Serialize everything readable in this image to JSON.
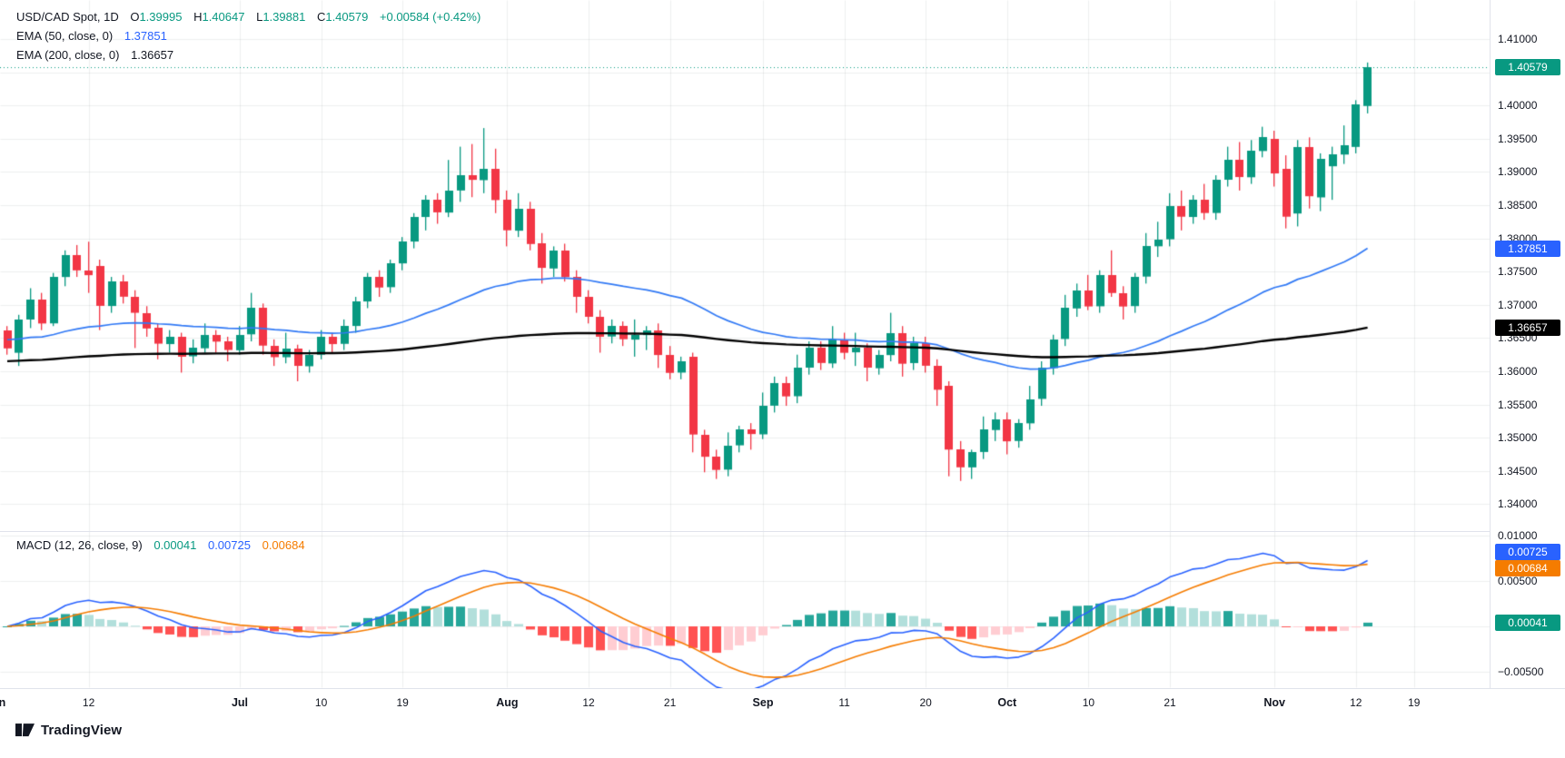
{
  "header": {
    "symbol": "USD/CAD Spot, 1D",
    "ohlc": {
      "o_label": "O",
      "o": "1.39995",
      "h_label": "H",
      "h": "1.40647",
      "l_label": "L",
      "l": "1.39881",
      "c_label": "C",
      "c": "1.40579",
      "change": "+0.00584 (+0.42%)"
    },
    "ema50_label": "EMA (50, close, 0)",
    "ema50_value": "1.37851",
    "ema200_label": "EMA (200, close, 0)",
    "ema200_value": "1.36657"
  },
  "macd_pane": {
    "label": "MACD (12, 26, close, 9)",
    "hist_value": "0.00041",
    "macd_value": "0.00725",
    "signal_value": "0.00684"
  },
  "badges": {
    "last_price": "1.40579",
    "ema50": "1.37851",
    "ema200": "1.36657",
    "macd": "0.00725",
    "signal": "0.00684",
    "hist": "0.00041"
  },
  "axis": {
    "price_ticks": [
      "1.41000",
      "1.40000",
      "1.39500",
      "1.39000",
      "1.38500",
      "1.38000",
      "1.37500",
      "1.37000",
      "1.36500",
      "1.36000",
      "1.35500",
      "1.35000",
      "1.34500",
      "1.34000"
    ],
    "macd_ticks": [
      {
        "label": "0.01000",
        "v": 0.01
      },
      {
        "label": "0.00500",
        "v": 0.005
      },
      {
        "label": "−0.00500",
        "v": -0.005
      }
    ],
    "time_ticks": [
      {
        "label": "Jun",
        "i": -1,
        "month": true
      },
      {
        "label": "12",
        "i": 7
      },
      {
        "label": "Jul",
        "i": 20,
        "month": true
      },
      {
        "label": "10",
        "i": 27
      },
      {
        "label": "19",
        "i": 34
      },
      {
        "label": "Aug",
        "i": 43,
        "month": true
      },
      {
        "label": "12",
        "i": 50
      },
      {
        "label": "21",
        "i": 57
      },
      {
        "label": "Sep",
        "i": 65,
        "month": true
      },
      {
        "label": "11",
        "i": 72
      },
      {
        "label": "20",
        "i": 79
      },
      {
        "label": "Oct",
        "i": 86,
        "month": true
      },
      {
        "label": "10",
        "i": 93
      },
      {
        "label": "21",
        "i": 100
      },
      {
        "label": "Nov",
        "i": 109,
        "month": true
      },
      {
        "label": "12",
        "i": 116
      },
      {
        "label": "19",
        "i": 121
      }
    ]
  },
  "colors": {
    "up": "#089981",
    "down": "#F23645",
    "ema50_line": "#3179F5",
    "ema200_line": "#000000",
    "macd_line": "#2962FF",
    "signal_line": "#F57C00",
    "hist_up_grow": "#26A69A",
    "hist_up_fall": "#B2DFDB",
    "hist_down_grow": "#FF5252",
    "hist_down_fall": "#FFCDD2",
    "badge_last": "#089981",
    "badge_ema50": "#2962FF",
    "badge_ema200": "#000000",
    "badge_macd": "#2962FF",
    "badge_signal": "#F57C00",
    "badge_hist": "#089981",
    "grid": "rgba(42,46,57,0.08)"
  },
  "watermark": "TradingView",
  "chart_data": {
    "type": "candlestick",
    "title": "USD/CAD Spot, 1D",
    "last_price": 1.40579,
    "price_axis_range": [
      1.336,
      1.4159
    ],
    "macd_axis_range": [
      -0.0067,
      0.0104
    ],
    "grid": true,
    "indicators": [
      {
        "name": "EMA 50",
        "period": 50,
        "seed": 1.3648,
        "current": 1.37851
      },
      {
        "name": "EMA 200",
        "period": 200,
        "seed": 1.3615,
        "current": 1.36657
      }
    ],
    "macd": {
      "fast": 12,
      "slow": 26,
      "signal_period": 9,
      "current_macd": 0.00725,
      "current_signal": 0.00684,
      "current_hist": 0.00041
    },
    "candles": [
      [
        "06-03",
        1.3662,
        1.3668,
        1.3625,
        1.3635
      ],
      [
        "06-04",
        1.3628,
        1.3685,
        1.3608,
        1.3678
      ],
      [
        "06-05",
        1.3678,
        1.3725,
        1.3665,
        1.3708
      ],
      [
        "06-06",
        1.3708,
        1.3718,
        1.3662,
        1.3672
      ],
      [
        "06-07",
        1.3672,
        1.3748,
        1.3668,
        1.3742
      ],
      [
        "06-10",
        1.3742,
        1.3782,
        1.3728,
        1.3775
      ],
      [
        "06-11",
        1.3775,
        1.379,
        1.3742,
        1.3752
      ],
      [
        "06-12",
        1.3752,
        1.3795,
        1.3718,
        1.3745
      ],
      [
        "06-13",
        1.3758,
        1.3768,
        1.3662,
        1.3698
      ],
      [
        "06-14",
        1.3698,
        1.3742,
        1.3688,
        1.3735
      ],
      [
        "06-17",
        1.3735,
        1.3745,
        1.3702,
        1.3712
      ],
      [
        "06-18",
        1.3712,
        1.3722,
        1.3635,
        1.3688
      ],
      [
        "06-19",
        1.3688,
        1.3698,
        1.3652,
        1.3665
      ],
      [
        "06-20",
        1.3665,
        1.3672,
        1.3618,
        1.3641
      ],
      [
        "06-21",
        1.3641,
        1.3662,
        1.3628,
        1.3652
      ],
      [
        "06-24",
        1.3652,
        1.3658,
        1.3598,
        1.3622
      ],
      [
        "06-25",
        1.3622,
        1.3648,
        1.3612,
        1.3635
      ],
      [
        "06-26",
        1.3635,
        1.3672,
        1.3628,
        1.3655
      ],
      [
        "06-27",
        1.3655,
        1.3662,
        1.3628,
        1.3645
      ],
      [
        "06-28",
        1.3645,
        1.3652,
        1.3615,
        1.3632
      ],
      [
        "07-01",
        1.3632,
        1.3668,
        1.3625,
        1.3655
      ],
      [
        "07-02",
        1.3655,
        1.3718,
        1.3645,
        1.3695
      ],
      [
        "07-03",
        1.3695,
        1.3702,
        1.3625,
        1.3638
      ],
      [
        "07-04",
        1.3638,
        1.3648,
        1.3608,
        1.3621
      ],
      [
        "07-05",
        1.3621,
        1.3658,
        1.3612,
        1.3634
      ],
      [
        "07-08",
        1.3634,
        1.364,
        1.3585,
        1.3608
      ],
      [
        "07-09",
        1.3608,
        1.3632,
        1.3598,
        1.3625
      ],
      [
        "07-10",
        1.3625,
        1.3662,
        1.3618,
        1.3652
      ],
      [
        "07-11",
        1.3652,
        1.3658,
        1.3628,
        1.3641
      ],
      [
        "07-12",
        1.3641,
        1.3678,
        1.3632,
        1.3668
      ],
      [
        "07-15",
        1.3668,
        1.3712,
        1.3658,
        1.3705
      ],
      [
        "07-16",
        1.3705,
        1.3748,
        1.3695,
        1.3742
      ],
      [
        "07-17",
        1.3742,
        1.3752,
        1.3712,
        1.3726
      ],
      [
        "07-18",
        1.3726,
        1.3768,
        1.3718,
        1.3762
      ],
      [
        "07-19",
        1.3762,
        1.3802,
        1.3752,
        1.3795
      ],
      [
        "07-22",
        1.3795,
        1.3838,
        1.3785,
        1.3832
      ],
      [
        "07-23",
        1.3832,
        1.3865,
        1.3812,
        1.3858
      ],
      [
        "07-24",
        1.3858,
        1.3868,
        1.3822,
        1.3839
      ],
      [
        "07-25",
        1.3839,
        1.3918,
        1.3832,
        1.3872
      ],
      [
        "07-26",
        1.3872,
        1.3938,
        1.3855,
        1.3895
      ],
      [
        "07-29",
        1.3895,
        1.3942,
        1.3862,
        1.3888
      ],
      [
        "07-30",
        1.3888,
        1.3966,
        1.3868,
        1.3905
      ],
      [
        "07-31",
        1.3905,
        1.3935,
        1.3838,
        1.3858
      ],
      [
        "08-01",
        1.3858,
        1.3872,
        1.3788,
        1.3812
      ],
      [
        "08-02",
        1.3812,
        1.3868,
        1.3802,
        1.3845
      ],
      [
        "08-05",
        1.3845,
        1.3855,
        1.3782,
        1.3792
      ],
      [
        "08-06",
        1.3792,
        1.3808,
        1.3732,
        1.3755
      ],
      [
        "08-07",
        1.3755,
        1.3788,
        1.3742,
        1.3782
      ],
      [
        "08-08",
        1.3782,
        1.3792,
        1.3735,
        1.3742
      ],
      [
        "08-09",
        1.3742,
        1.3752,
        1.3688,
        1.3712
      ],
      [
        "08-12",
        1.3712,
        1.3722,
        1.3672,
        1.3682
      ],
      [
        "08-13",
        1.3682,
        1.3692,
        1.3628,
        1.3652
      ],
      [
        "08-14",
        1.3652,
        1.3678,
        1.3642,
        1.3668
      ],
      [
        "08-15",
        1.3668,
        1.3675,
        1.3638,
        1.3648
      ],
      [
        "08-16",
        1.3648,
        1.3678,
        1.3622,
        1.3655
      ],
      [
        "08-19",
        1.3655,
        1.3668,
        1.3632,
        1.3662
      ],
      [
        "08-20",
        1.3662,
        1.3672,
        1.3605,
        1.3625
      ],
      [
        "08-21",
        1.3625,
        1.3638,
        1.3588,
        1.3598
      ],
      [
        "08-22",
        1.3598,
        1.3622,
        1.3588,
        1.3615
      ],
      [
        "08-23",
        1.3622,
        1.3628,
        1.3478,
        1.3505
      ],
      [
        "08-26",
        1.3505,
        1.3512,
        1.3448,
        1.3472
      ],
      [
        "08-27",
        1.3472,
        1.3482,
        1.3438,
        1.3452
      ],
      [
        "08-28",
        1.3452,
        1.3508,
        1.3442,
        1.3488
      ],
      [
        "08-29",
        1.3488,
        1.3518,
        1.3478,
        1.3512
      ],
      [
        "08-30",
        1.3512,
        1.3522,
        1.3482,
        1.3505
      ],
      [
        "09-02",
        1.3505,
        1.3568,
        1.3498,
        1.3548
      ],
      [
        "09-03",
        1.3548,
        1.3592,
        1.3538,
        1.3582
      ],
      [
        "09-04",
        1.3582,
        1.3592,
        1.3548,
        1.3562
      ],
      [
        "09-05",
        1.3562,
        1.3625,
        1.3552,
        1.3605
      ],
      [
        "09-06",
        1.3605,
        1.3645,
        1.3595,
        1.3635
      ],
      [
        "09-09",
        1.3635,
        1.3645,
        1.3602,
        1.3612
      ],
      [
        "09-10",
        1.3612,
        1.3668,
        1.3605,
        1.3648
      ],
      [
        "09-11",
        1.3648,
        1.3658,
        1.3618,
        1.3628
      ],
      [
        "09-12",
        1.3628,
        1.3658,
        1.3608,
        1.3635
      ],
      [
        "09-13",
        1.3635,
        1.3642,
        1.3585,
        1.3605
      ],
      [
        "09-16",
        1.3605,
        1.3632,
        1.3595,
        1.3625
      ],
      [
        "09-17",
        1.3625,
        1.3688,
        1.3615,
        1.3658
      ],
      [
        "09-18",
        1.3658,
        1.3668,
        1.3592,
        1.3612
      ],
      [
        "09-19",
        1.3612,
        1.3652,
        1.3602,
        1.3642
      ],
      [
        "09-20",
        1.3642,
        1.3652,
        1.3598,
        1.3608
      ],
      [
        "09-23",
        1.3608,
        1.3618,
        1.3548,
        1.3572
      ],
      [
        "09-24",
        1.3578,
        1.3585,
        1.3442,
        1.3482
      ],
      [
        "09-25",
        1.3482,
        1.3495,
        1.3435,
        1.3455
      ],
      [
        "09-26",
        1.3455,
        1.3482,
        1.3438,
        1.3478
      ],
      [
        "09-27",
        1.3478,
        1.3532,
        1.3468,
        1.3512
      ],
      [
        "09-30",
        1.3512,
        1.3538,
        1.3495,
        1.3528
      ],
      [
        "10-01",
        1.3528,
        1.3538,
        1.3475,
        1.3495
      ],
      [
        "10-02",
        1.3495,
        1.3528,
        1.3485,
        1.3522
      ],
      [
        "10-03",
        1.3522,
        1.3578,
        1.3512,
        1.3558
      ],
      [
        "10-04",
        1.3558,
        1.3615,
        1.3548,
        1.3605
      ],
      [
        "10-07",
        1.3605,
        1.3655,
        1.3595,
        1.3648
      ],
      [
        "10-08",
        1.3648,
        1.3715,
        1.3638,
        1.3695
      ],
      [
        "10-09",
        1.3695,
        1.3732,
        1.3682,
        1.3722
      ],
      [
        "10-10",
        1.3722,
        1.3745,
        1.3692,
        1.3698
      ],
      [
        "10-11",
        1.3698,
        1.3752,
        1.3688,
        1.3745
      ],
      [
        "10-14",
        1.3745,
        1.3782,
        1.3712,
        1.3718
      ],
      [
        "10-15",
        1.3718,
        1.3728,
        1.3678,
        1.3698
      ],
      [
        "10-16",
        1.3698,
        1.3748,
        1.3688,
        1.3742
      ],
      [
        "10-17",
        1.3742,
        1.3808,
        1.3732,
        1.3788
      ],
      [
        "10-18",
        1.3788,
        1.3825,
        1.3772,
        1.3798
      ],
      [
        "10-21",
        1.3798,
        1.3868,
        1.3788,
        1.3848
      ],
      [
        "10-22",
        1.3848,
        1.3872,
        1.3812,
        1.3832
      ],
      [
        "10-23",
        1.3832,
        1.3865,
        1.3822,
        1.3858
      ],
      [
        "10-24",
        1.3858,
        1.3882,
        1.3828,
        1.3838
      ],
      [
        "10-25",
        1.3838,
        1.3895,
        1.3828,
        1.3888
      ],
      [
        "10-28",
        1.3888,
        1.3938,
        1.3878,
        1.3918
      ],
      [
        "10-29",
        1.3918,
        1.3945,
        1.3872,
        1.3892
      ],
      [
        "10-30",
        1.3892,
        1.3948,
        1.3882,
        1.3932
      ],
      [
        "10-31",
        1.3932,
        1.3968,
        1.3922,
        1.3953
      ],
      [
        "11-01",
        1.395,
        1.3962,
        1.3878,
        1.3898
      ],
      [
        "11-04",
        1.3905,
        1.3925,
        1.3815,
        1.3833
      ],
      [
        "11-05",
        1.3838,
        1.3948,
        1.3818,
        1.3938
      ],
      [
        "11-06",
        1.3938,
        1.3952,
        1.3845,
        1.3864
      ],
      [
        "11-07",
        1.3861,
        1.3928,
        1.3841,
        1.3919
      ],
      [
        "11-08",
        1.3908,
        1.3938,
        1.3858,
        1.3926
      ],
      [
        "11-11",
        1.3926,
        1.397,
        1.3912,
        1.394
      ],
      [
        "11-12",
        1.3938,
        1.4008,
        1.3928,
        1.4002
      ],
      [
        "11-13",
        1.39995,
        1.40647,
        1.39881,
        1.40579
      ]
    ]
  }
}
